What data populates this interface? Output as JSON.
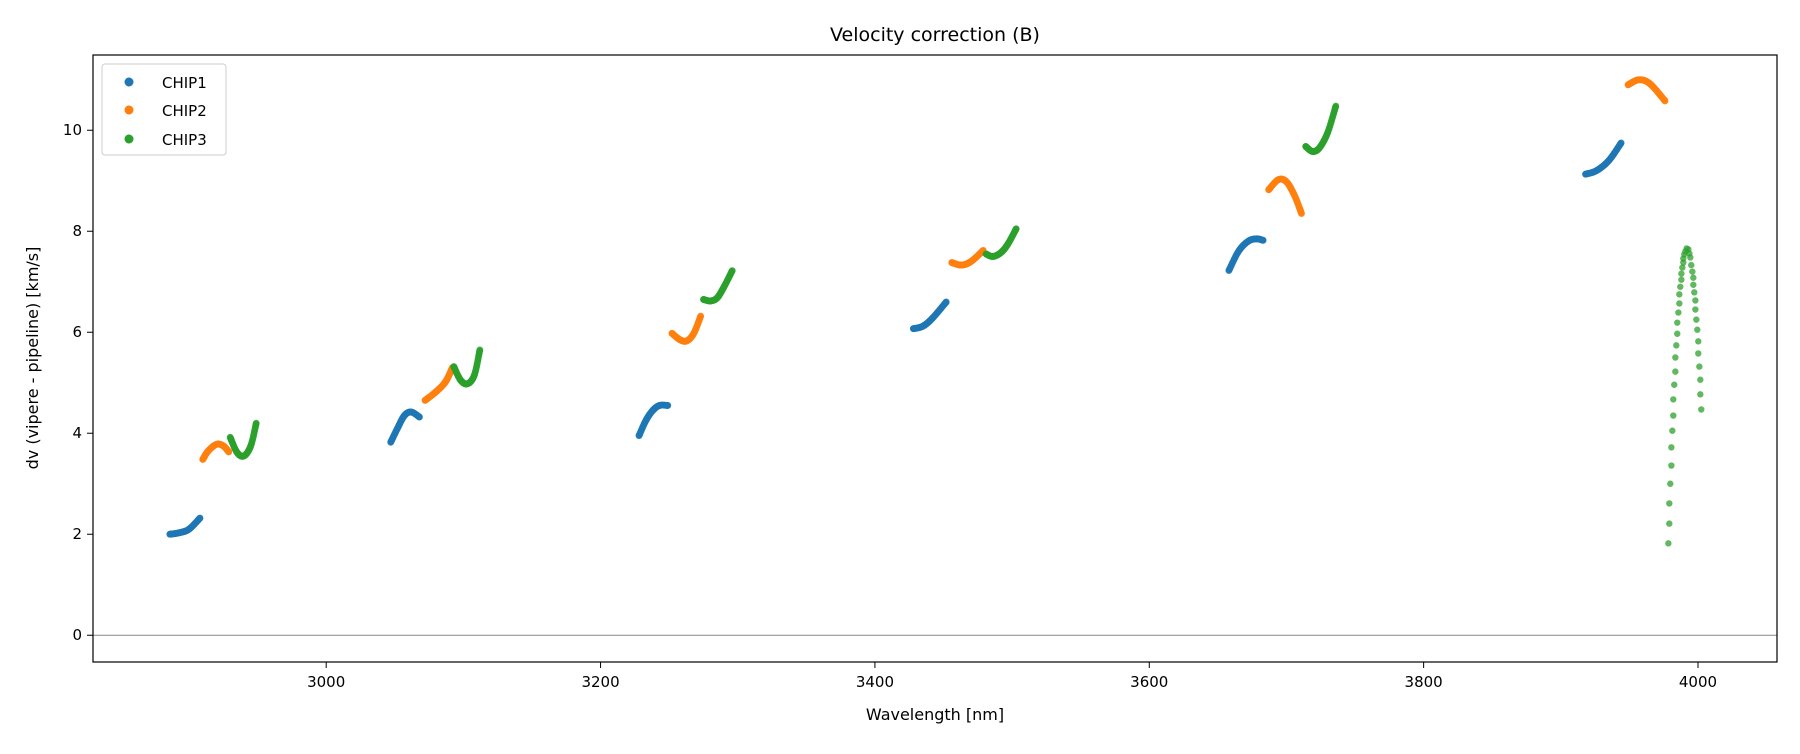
{
  "chart_data": {
    "type": "scatter",
    "title": "Velocity correction (B)",
    "xlabel": "Wavelength [nm]",
    "ylabel": "dv (vipere - pipeline) [km/s]",
    "xlim": [
      2830,
      4057.6
    ],
    "ylim": [
      -0.53,
      11.49
    ],
    "xticks": [
      3000,
      3200,
      3400,
      3600,
      3800,
      4000
    ],
    "yticks": [
      0,
      2,
      4,
      6,
      8,
      10
    ],
    "grid": false,
    "reference_line_y": 0,
    "legend_placement": "top-left",
    "series": [
      {
        "name": "CHIP1",
        "color": "#1f77b4",
        "segments": [
          {
            "x": [
              2886,
              2893,
              2900,
              2908
            ],
            "y": [
              2.0,
              2.03,
              2.1,
              2.32
            ]
          },
          {
            "x": [
              3047,
              3052,
              3057,
              3062,
              3068
            ],
            "y": [
              3.82,
              4.1,
              4.35,
              4.42,
              4.32
            ]
          },
          {
            "x": [
              3228,
              3233,
              3238,
              3243,
              3249
            ],
            "y": [
              3.95,
              4.25,
              4.45,
              4.55,
              4.55
            ]
          },
          {
            "x": [
              3428,
              3435,
              3442,
              3452
            ],
            "y": [
              6.07,
              6.12,
              6.28,
              6.6
            ]
          },
          {
            "x": [
              3658,
              3665,
              3672,
              3678,
              3683
            ],
            "y": [
              7.22,
              7.6,
              7.8,
              7.85,
              7.82
            ]
          },
          {
            "x": [
              3918,
              3926,
              3935,
              3944
            ],
            "y": [
              9.13,
              9.2,
              9.4,
              9.75
            ]
          }
        ]
      },
      {
        "name": "CHIP2",
        "color": "#ff7f0e",
        "segments": [
          {
            "x": [
              2910,
              2914,
              2920,
              2925,
              2929
            ],
            "y": [
              3.48,
              3.65,
              3.78,
              3.75,
              3.63
            ]
          },
          {
            "x": [
              3072,
              3080,
              3087,
              3092
            ],
            "y": [
              4.65,
              4.82,
              5.02,
              5.3
            ]
          },
          {
            "x": [
              3252,
              3258,
              3263,
              3268,
              3273
            ],
            "y": [
              5.98,
              5.85,
              5.83,
              5.98,
              6.32
            ]
          },
          {
            "x": [
              3456,
              3463,
              3470,
              3479
            ],
            "y": [
              7.38,
              7.33,
              7.4,
              7.62
            ]
          },
          {
            "x": [
              3687,
              3694,
              3700,
              3706,
              3711
            ],
            "y": [
              8.82,
              9.02,
              8.98,
              8.7,
              8.35
            ]
          },
          {
            "x": [
              3949,
              3957,
              3965,
              3976
            ],
            "y": [
              10.9,
              11.0,
              10.92,
              10.58
            ]
          }
        ]
      },
      {
        "name": "CHIP3",
        "color": "#2ca02c",
        "segments": [
          {
            "x": [
              2930,
              2935,
              2940,
              2945,
              2949
            ],
            "y": [
              3.92,
              3.62,
              3.55,
              3.75,
              4.2
            ]
          },
          {
            "x": [
              3093,
              3098,
              3103,
              3108,
              3112
            ],
            "y": [
              5.32,
              5.05,
              4.98,
              5.15,
              5.65
            ]
          },
          {
            "x": [
              3275,
              3280,
              3285,
              3290,
              3296
            ],
            "y": [
              6.65,
              6.62,
              6.68,
              6.9,
              7.22
            ]
          },
          {
            "x": [
              3481,
              3486,
              3492,
              3497,
              3503
            ],
            "y": [
              7.55,
              7.5,
              7.58,
              7.75,
              8.05
            ]
          },
          {
            "x": [
              3714,
              3719,
              3724,
              3730,
              3736
            ],
            "y": [
              9.68,
              9.58,
              9.65,
              9.95,
              10.48
            ]
          },
          {
            "sparse": true,
            "x": [
              3978.4,
              3979.1,
              3979.1,
              3979.8,
              3980.6,
              3980.6,
              3981.3,
              3982.0,
              3982.0,
              3982.7,
              3983.5,
              3983.5,
              3984.2,
              3984.9,
              3984.9,
              3985.7,
              3986.4,
              3986.4,
              3987.1,
              3987.9,
              3987.9,
              3988.6,
              3989.3,
              3989.3,
              3990.0,
              3990.8,
              3991.7,
              3993.0,
              3993.7,
              3994.4,
              3995.1,
              3995.9,
              3996.6,
              3996.6,
              3997.3,
              3998.1,
              3998.1,
              3998.8,
              3999.5,
              4000.2,
              4000.2,
              4001.0,
              4001.7,
              4001.7,
              4002.4
            ],
            "y": [
              1.82,
              2.21,
              2.61,
              3.0,
              3.36,
              3.72,
              4.05,
              4.35,
              4.67,
              4.96,
              5.22,
              5.5,
              5.74,
              5.97,
              6.19,
              6.39,
              6.57,
              6.75,
              6.9,
              7.04,
              7.16,
              7.28,
              7.38,
              7.46,
              7.54,
              7.6,
              7.66,
              7.64,
              7.56,
              7.48,
              7.33,
              7.2,
              7.08,
              6.94,
              6.79,
              6.63,
              6.45,
              6.25,
              6.05,
              5.82,
              5.58,
              5.32,
              5.06,
              4.77,
              4.47
            ]
          }
        ]
      }
    ]
  }
}
